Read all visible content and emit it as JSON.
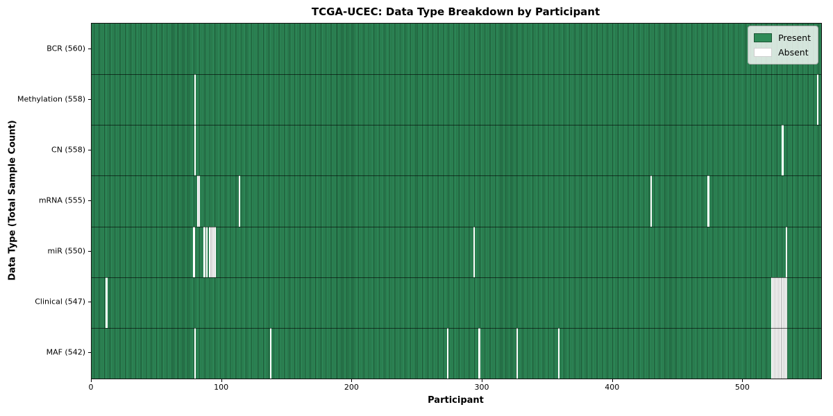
{
  "chart_data": {
    "type": "heatmap",
    "title": "TCGA-UCEC: Data Type Breakdown by Participant",
    "xlabel": "Participant",
    "ylabel": "Data Type (Total Sample Count)",
    "x_ticks": [
      0,
      100,
      200,
      300,
      400,
      500
    ],
    "x_range": [
      0,
      560
    ],
    "n_participants": 560,
    "grid": false,
    "legend_position": "upper right",
    "colors": {
      "present": "#2e8b57",
      "present_edge": "#1c5434",
      "absent": "#ffffff"
    },
    "legend": {
      "items": [
        {
          "label": "Present",
          "color": "#2e8b57"
        },
        {
          "label": "Absent",
          "color": "#ffffff"
        }
      ]
    },
    "rows": [
      {
        "label": "BCR (560)",
        "data_type": "BCR",
        "present_count": 560,
        "absent_participants": []
      },
      {
        "label": "Methylation (558)",
        "data_type": "Methylation",
        "present_count": 558,
        "absent_participants": [
          79,
          557
        ]
      },
      {
        "label": "CN (558)",
        "data_type": "CN",
        "present_count": 558,
        "absent_participants": [
          79,
          530
        ]
      },
      {
        "label": "mRNA (555)",
        "data_type": "mRNA",
        "present_count": 555,
        "absent_participants": [
          81,
          82,
          113,
          429,
          473
        ]
      },
      {
        "label": "miR (550)",
        "data_type": "miR",
        "present_count": 550,
        "absent_participants": [
          78,
          86,
          88,
          90,
          91,
          92,
          93,
          94,
          293,
          533
        ]
      },
      {
        "label": "Clinical (547)",
        "data_type": "Clinical",
        "present_count": 547,
        "absent_participants": [
          11,
          522,
          523,
          524,
          525,
          526,
          527,
          528,
          529,
          530,
          531,
          532,
          533
        ]
      },
      {
        "label": "MAF (542)",
        "data_type": "MAF",
        "present_count": 542,
        "absent_participants": [
          79,
          137,
          273,
          297,
          326,
          358,
          522,
          523,
          524,
          525,
          526,
          527,
          528,
          529,
          530,
          531,
          532,
          533
        ]
      }
    ]
  }
}
